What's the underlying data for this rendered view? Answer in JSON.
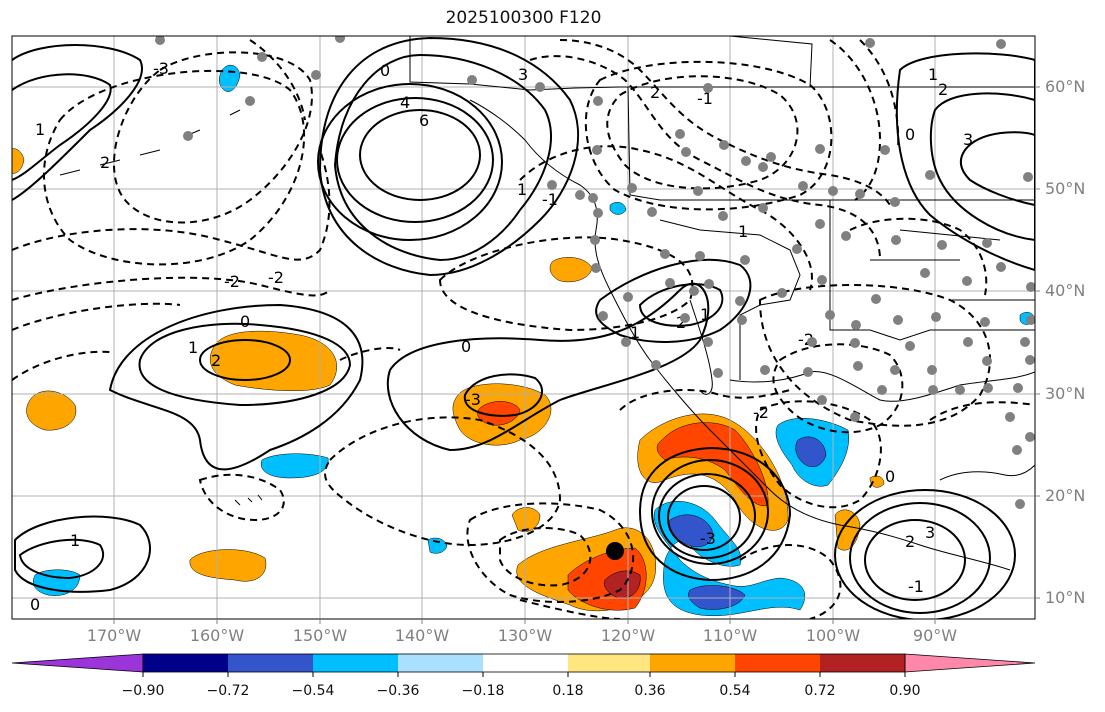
{
  "title": "2025100300 F120",
  "map": {
    "lat_labels": [
      "60°N",
      "50°N",
      "40°N",
      "30°N",
      "20°N",
      "10°N"
    ],
    "lon_labels": [
      "170°W",
      "160°W",
      "150°W",
      "140°W",
      "130°W",
      "120°W",
      "110°W",
      "100°W",
      "90°W"
    ],
    "contour_labels": [
      "6",
      "4",
      "3",
      "2",
      "1",
      "0",
      "-1",
      "-2",
      "-3",
      "1",
      "2",
      "0",
      "-2",
      "1",
      "2",
      "0",
      "1",
      "-2",
      "-3",
      "3",
      "2",
      "1",
      "0",
      "-1",
      "1",
      "2",
      "3",
      "0",
      "-1",
      "-2",
      "1",
      "0",
      "-3",
      "1",
      "2"
    ],
    "marker": {
      "label": "storm-center",
      "lon": -121,
      "lat": 14.5
    }
  },
  "colorbar": {
    "labels": [
      "−0.90",
      "−0.72",
      "−0.54",
      "−0.36",
      "−0.18",
      "0.18",
      "0.36",
      "0.54",
      "0.72",
      "0.90"
    ],
    "colors": [
      "#9b35d9",
      "#00008b",
      "#3355cc",
      "#00bfff",
      "#aae0ff",
      "#ffffff",
      "#ffe680",
      "#ffa500",
      "#ff4500",
      "#b22222",
      "#ff88aa"
    ]
  },
  "colors": {
    "grid": "#b0b0b0",
    "contour": "#000000",
    "station": "#808080"
  }
}
